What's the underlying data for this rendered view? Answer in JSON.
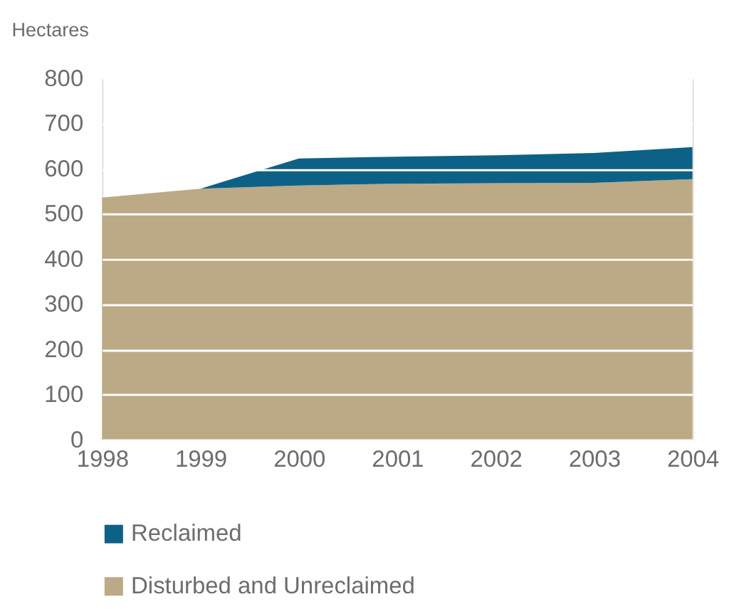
{
  "chart_data": {
    "type": "area",
    "ylabel": "Hectares",
    "stacked": true,
    "x": [
      1998,
      1999,
      2000,
      2001,
      2002,
      2003,
      2004
    ],
    "series": [
      {
        "name": "Disturbed and Unreclaimed",
        "color": "#bca985",
        "values": [
          536,
          556,
          563,
          567,
          568,
          569,
          577
        ]
      },
      {
        "name": "Reclaimed",
        "color": "#0e6186",
        "values": [
          0,
          0,
          60,
          60,
          62,
          66,
          71
        ]
      }
    ],
    "xlim": [
      1998,
      2004
    ],
    "xticks": [
      1998,
      1999,
      2000,
      2001,
      2002,
      2003,
      2004
    ],
    "ylim": [
      0,
      800
    ],
    "yticks": [
      0,
      100,
      200,
      300,
      400,
      500,
      600,
      700,
      800
    ],
    "grid": "y",
    "legend": "bottom"
  }
}
